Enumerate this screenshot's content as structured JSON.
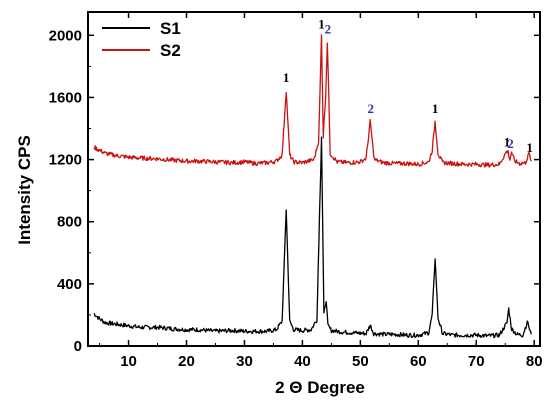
{
  "chart_data": {
    "type": "line",
    "xlabel": "2 Θ Degree",
    "ylabel": "Intensity CPS",
    "xlim": [
      3,
      81
    ],
    "ylim": [
      0,
      2150
    ],
    "xticks": [
      10,
      20,
      30,
      40,
      50,
      60,
      70,
      80
    ],
    "yticks": [
      0,
      400,
      800,
      1200,
      1600,
      2000
    ],
    "grid": false,
    "legend": {
      "position": "top-left"
    },
    "colors": {
      "S1": "#000000",
      "S2": "#cc1111",
      "peak_1": "#000000",
      "peak_2": "#2a35b0"
    },
    "series": [
      {
        "name": "S1",
        "color": "#000000",
        "x": [
          4,
          5,
          6,
          8,
          10,
          12,
          15,
          18,
          20,
          22,
          25,
          28,
          30,
          32,
          34,
          35.5,
          36.5,
          37.2,
          37.8,
          38.5,
          40,
          41.5,
          42.5,
          43.3,
          43.7,
          44.1,
          44.4,
          45,
          47,
          49,
          51,
          51.7,
          52.3,
          54,
          56,
          58,
          60,
          61.8,
          62.4,
          62.9,
          63.4,
          64.2,
          66,
          68,
          70,
          72,
          74,
          75.3,
          75.6,
          76.1,
          77,
          78,
          78.9,
          79.2,
          79.5
        ],
        "values": [
          210,
          175,
          150,
          140,
          130,
          120,
          120,
          110,
          105,
          105,
          95,
          100,
          95,
          95,
          95,
          105,
          160,
          880,
          160,
          105,
          100,
          105,
          170,
          1350,
          200,
          300,
          130,
          100,
          90,
          85,
          80,
          135,
          80,
          75,
          75,
          70,
          70,
          85,
          200,
          570,
          180,
          80,
          70,
          70,
          70,
          65,
          70,
          150,
          240,
          110,
          75,
          70,
          160,
          100,
          75
        ]
      },
      {
        "name": "S2",
        "color": "#cc1111",
        "x": [
          4,
          6,
          8,
          10,
          12,
          15,
          18,
          20,
          22,
          25,
          28,
          30,
          32,
          34,
          35.5,
          36.5,
          37.2,
          37.8,
          38.5,
          40,
          42,
          42.8,
          43.3,
          43.6,
          44,
          44.3,
          44.8,
          46,
          48,
          50,
          51,
          51.7,
          52.4,
          54,
          56,
          58,
          60,
          61.8,
          62.4,
          62.9,
          63.4,
          64.2,
          66,
          68,
          70,
          72,
          74,
          75.2,
          75.5,
          75.8,
          76.1,
          76.6,
          77.5,
          78.5,
          79.1,
          79.5
        ],
        "values": [
          1280,
          1240,
          1225,
          1215,
          1210,
          1205,
          1195,
          1190,
          1190,
          1185,
          1180,
          1185,
          1175,
          1180,
          1190,
          1230,
          1645,
          1230,
          1185,
          1180,
          1200,
          1320,
          2000,
          1350,
          1600,
          1960,
          1240,
          1185,
          1180,
          1185,
          1210,
          1445,
          1200,
          1180,
          1175,
          1175,
          1170,
          1185,
          1260,
          1445,
          1240,
          1180,
          1175,
          1170,
          1170,
          1165,
          1170,
          1250,
          1250,
          1200,
          1250,
          1190,
          1175,
          1180,
          1240,
          1190
        ]
      }
    ],
    "annotations": [
      {
        "text": "1",
        "x": 37.2,
        "y": 1700,
        "color": "#000000"
      },
      {
        "text": "1",
        "x": 43.3,
        "y": 2045,
        "color": "#000000"
      },
      {
        "text": "2",
        "x": 44.4,
        "y": 2010,
        "color": "#2a35b0"
      },
      {
        "text": "2",
        "x": 51.8,
        "y": 1500,
        "color": "#2a35b0"
      },
      {
        "text": "1",
        "x": 62.9,
        "y": 1500,
        "color": "#000000"
      },
      {
        "text": "1",
        "x": 75.3,
        "y": 1285,
        "color": "#000000"
      },
      {
        "text": "2",
        "x": 75.9,
        "y": 1275,
        "color": "#2a35b0"
      },
      {
        "text": "1",
        "x": 79.2,
        "y": 1250,
        "color": "#000000"
      }
    ]
  }
}
